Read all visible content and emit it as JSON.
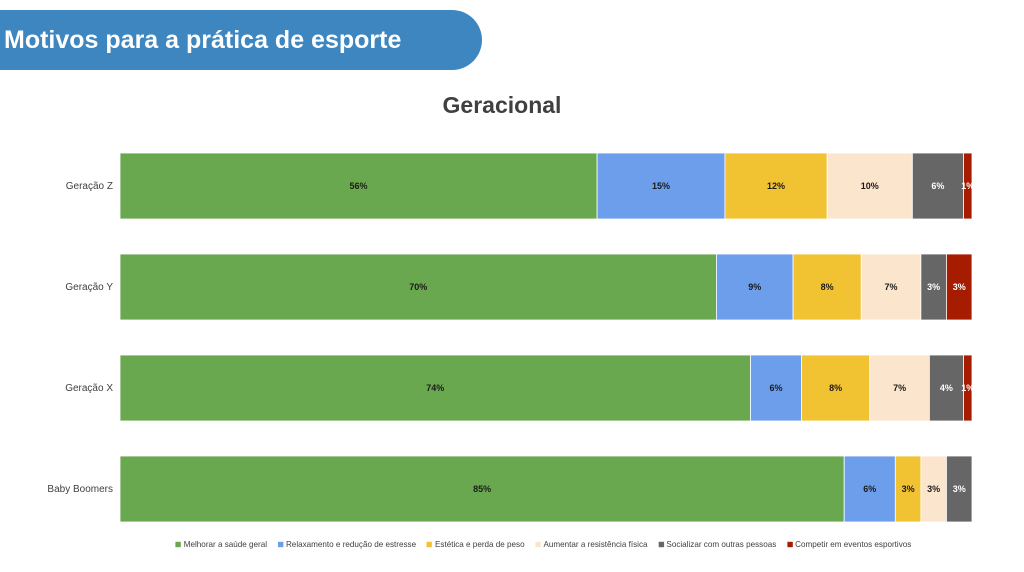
{
  "header": {
    "title": "Motivos para a prática de esporte"
  },
  "chart_data": {
    "type": "bar",
    "orientation": "horizontal",
    "stacked": true,
    "title": "Geracional",
    "categories": [
      "Geração Z",
      "Geração Y",
      "Geração X",
      "Baby Boomers"
    ],
    "series": [
      {
        "name": "Melhorar a saúde geral",
        "color": "#6aa84f",
        "values": [
          56,
          70,
          74,
          85
        ],
        "labels": [
          "56%",
          "70%",
          "74%",
          "85%"
        ],
        "label_color": "#1a1a1a"
      },
      {
        "name": "Relaxamento e redução de estresse",
        "color": "#6d9eeb",
        "values": [
          15,
          9,
          6,
          6
        ],
        "labels": [
          "15%",
          "9%",
          "6%",
          "6%"
        ],
        "label_color": "#1a1a1a"
      },
      {
        "name": "Estética e perda de peso",
        "color": "#f1c232",
        "values": [
          12,
          8,
          8,
          3
        ],
        "labels": [
          "12%",
          "8%",
          "8%",
          "3%"
        ],
        "label_color": "#1a1a1a"
      },
      {
        "name": "Aumentar a resistência física",
        "color": "#fce5cd",
        "values": [
          10,
          7,
          7,
          3
        ],
        "labels": [
          "10%",
          "7%",
          "7%",
          "3%"
        ],
        "label_color": "#1a1a1a"
      },
      {
        "name": "Socializar com outras pessoas",
        "color": "#666666",
        "values": [
          6,
          3,
          4,
          3
        ],
        "labels": [
          "6%",
          "3%",
          "4%",
          "3%"
        ],
        "label_color": "#ffffff"
      },
      {
        "name": "Competir em eventos esportivos",
        "color": "#a61c00",
        "values": [
          1,
          3,
          1,
          0
        ],
        "labels": [
          "1%",
          "3%",
          "1%",
          ""
        ],
        "label_color": "#ffffff"
      }
    ],
    "xlim": [
      0,
      100
    ],
    "legend_position": "bottom",
    "grid": false
  }
}
